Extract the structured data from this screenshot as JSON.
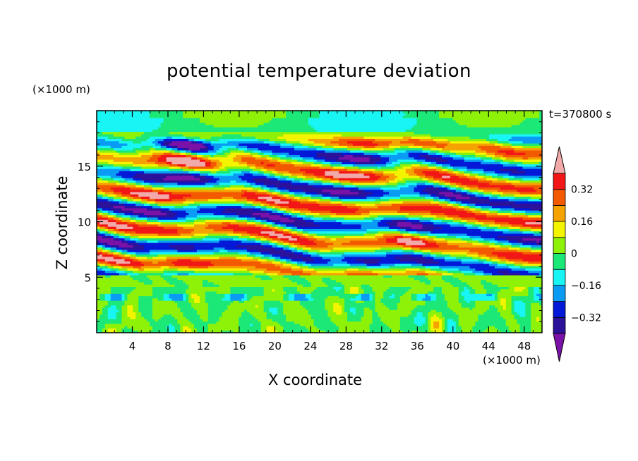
{
  "chart_data": {
    "type": "heatmap",
    "title": "potential temperature deviation",
    "xlabel": "X coordinate",
    "ylabel": "Z coordinate",
    "x_unit_label": "(×1000 m)",
    "y_unit_label": "(×1000 m)",
    "time_label": "t=370800 s",
    "xlim": [
      0,
      50
    ],
    "ylim": [
      0,
      20
    ],
    "x_ticks": [
      4,
      8,
      12,
      16,
      20,
      24,
      28,
      32,
      36,
      40,
      44,
      48
    ],
    "y_ticks": [
      5,
      10,
      15
    ],
    "colorbar": {
      "levels": [
        -0.4,
        -0.32,
        -0.24,
        -0.16,
        -0.08,
        0,
        0.08,
        0.16,
        0.24,
        0.32,
        0.4
      ],
      "tick_labels": [
        {
          "value": -0.32,
          "label": "−0.32"
        },
        {
          "value": -0.16,
          "label": "−0.16"
        },
        {
          "value": 0,
          "label": "0"
        },
        {
          "value": 0.16,
          "label": "0.16"
        },
        {
          "value": 0.32,
          "label": "0.32"
        }
      ],
      "colors": [
        "#7a12a8",
        "#2c129a",
        "#0418d8",
        "#0a9cf4",
        "#19f5f5",
        "#1ce878",
        "#8ef208",
        "#f4f400",
        "#f5a300",
        "#f35a00",
        "#f21717",
        "#f2a9a9"
      ],
      "extend": "both"
    },
    "regions": {
      "stable_layer_top_km": 5.3,
      "turbulent_upper_layer_km": [
        5.3,
        18
      ],
      "convective_lower_layer_km": [
        0,
        5.3
      ]
    }
  }
}
